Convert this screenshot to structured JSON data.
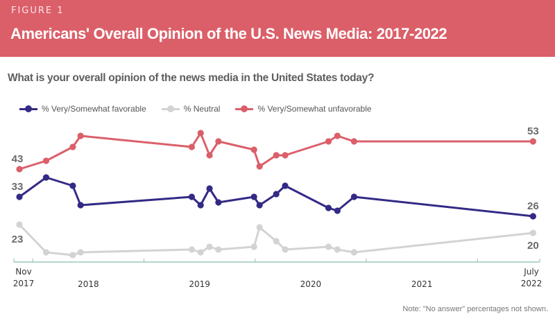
{
  "header": {
    "figure_label": "FIGURE 1",
    "title": "Americans' Overall Opinion of the U.S. News Media: 2017-2022",
    "background_color": "#db5f69"
  },
  "question": "What is your overall opinion of the news media in the United States today?",
  "legend": [
    {
      "label": "% Very/Somewhat favorable",
      "color": "#332a86"
    },
    {
      "label": "% Neutral",
      "color": "#d3d3d3"
    },
    {
      "label": "% Very/Somewhat unfavorable",
      "color": "#db5f69"
    }
  ],
  "note": "Note: \"No answer\" percentages not shown.",
  "chart_data": {
    "type": "line",
    "title": "Americans' Overall Opinion of the U.S. News Media: 2017-2022",
    "subtitle": "What is your overall opinion of the news media in the United States today?",
    "xlabel": "",
    "ylabel": "",
    "x": [
      2017.88,
      2018.12,
      2018.36,
      2018.43,
      2019.43,
      2019.51,
      2019.59,
      2019.67,
      2019.99,
      2020.04,
      2020.19,
      2020.27,
      2020.66,
      2020.74,
      2020.89,
      2022.5
    ],
    "x_range": [
      2017.83,
      2022.56
    ],
    "ylim": [
      10,
      60
    ],
    "grid": false,
    "legend_position": "top",
    "x_ticks": [
      2017.83,
      2018.0,
      2019.0,
      2020.0,
      2021.0,
      2022.0,
      2022.56
    ],
    "x_tick_labels": [
      {
        "lines": [
          "Nov",
          "2017"
        ],
        "at": 2017.88
      },
      {
        "lines": [
          "2018"
        ],
        "at": 2018.5
      },
      {
        "lines": [
          "2019"
        ],
        "at": 2019.5
      },
      {
        "lines": [
          "2020"
        ],
        "at": 2020.5
      },
      {
        "lines": [
          "2021"
        ],
        "at": 2021.5
      },
      {
        "lines": [
          "July",
          "2022"
        ],
        "at": 2022.5
      }
    ],
    "series": [
      {
        "name": "% Very/Somewhat favorable",
        "color": "#332a86",
        "values": [
          33,
          40,
          37,
          30,
          33,
          30,
          36,
          31,
          33,
          30,
          34,
          37,
          29,
          28,
          33,
          26
        ],
        "start_label": "33",
        "end_label": "26"
      },
      {
        "name": "% Neutral",
        "color": "#d3d3d3",
        "values": [
          23,
          13,
          12,
          13,
          14,
          13,
          15,
          14,
          15,
          22,
          17,
          14,
          15,
          14,
          13,
          20
        ],
        "start_label": "23",
        "end_label": "20"
      },
      {
        "name": "% Very/Somewhat unfavorable",
        "color": "#db5f69",
        "values": [
          43,
          46,
          51,
          55,
          51,
          56,
          48,
          53,
          50,
          44,
          48,
          48,
          53,
          55,
          53,
          53
        ],
        "start_label": "43",
        "end_label": "53"
      }
    ],
    "axis_color": "#9cc9bd"
  }
}
